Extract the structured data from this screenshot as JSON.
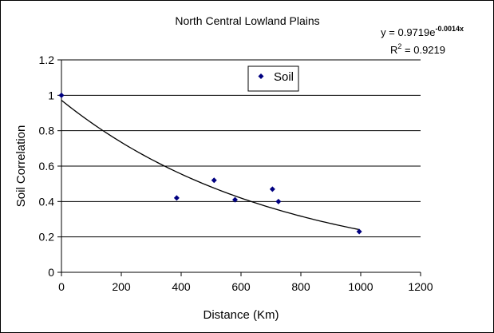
{
  "chart_data": {
    "type": "scatter",
    "title": "North Central Lowland Plains",
    "xlabel": "Distance (Km)",
    "ylabel": "Soil Correlation",
    "xlim": [
      0,
      1200
    ],
    "ylim": [
      0,
      1.2
    ],
    "x_ticks": [
      0,
      200,
      400,
      600,
      800,
      1000,
      1200
    ],
    "y_ticks": [
      0,
      0.2,
      0.4,
      0.6,
      0.8,
      1,
      1.2
    ],
    "x_tick_labels": [
      "0",
      "200",
      "400",
      "600",
      "800",
      "1000",
      "1200"
    ],
    "y_tick_labels": [
      "0",
      "0.2",
      "0.4",
      "0.6",
      "0.8",
      "1",
      "1.2"
    ],
    "grid": "horizontal",
    "legend_placement": "top-center",
    "series": [
      {
        "name": "Soil",
        "marker": "diamond",
        "color": "#000080",
        "points": [
          {
            "x": 0,
            "y": 1.0
          },
          {
            "x": 385,
            "y": 0.42
          },
          {
            "x": 510,
            "y": 0.52
          },
          {
            "x": 580,
            "y": 0.41
          },
          {
            "x": 705,
            "y": 0.47
          },
          {
            "x": 725,
            "y": 0.4
          },
          {
            "x": 995,
            "y": 0.23
          }
        ]
      }
    ],
    "trendline": {
      "type": "exponential",
      "a": 0.9719,
      "b": -0.0014,
      "x_range": [
        0,
        995
      ],
      "color": "#000000"
    },
    "equation": {
      "eq_prefix": "y = 0.9719e",
      "eq_exp": "-0.0014x",
      "r2_prefix": "R",
      "r2_sup": "2",
      "r2_suffix": " = 0.9219"
    }
  }
}
